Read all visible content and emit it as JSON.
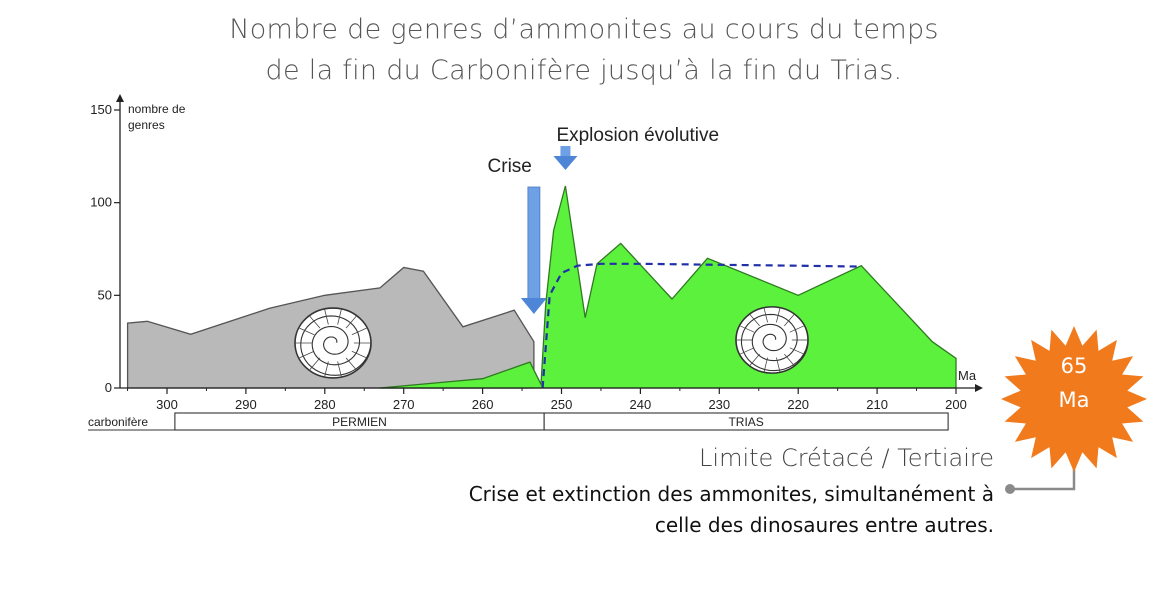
{
  "header": {
    "title_line1": "Nombre de genres d’ammonites au cours du temps",
    "title_line2": "de la fin du Carbonifère jusqu’à la fin du Trias."
  },
  "chart_data": {
    "type": "area",
    "ylabel_line1": "nombre de",
    "ylabel_line2": "genres",
    "xlabel": "Ma",
    "ylim": [
      0,
      150
    ],
    "yticks": [
      0,
      50,
      100,
      150
    ],
    "xlim": [
      306,
      200
    ],
    "xticks": [
      300,
      290,
      280,
      270,
      260,
      250,
      240,
      230,
      220,
      210,
      200
    ],
    "series": [
      {
        "color": "#b9b9b9",
        "points": [
          [
            305,
            0
          ],
          [
            305,
            35
          ],
          [
            302.5,
            36
          ],
          [
            297,
            29
          ],
          [
            287,
            43
          ],
          [
            280,
            50
          ],
          [
            273,
            54
          ],
          [
            270,
            65
          ],
          [
            267.5,
            63
          ],
          [
            262.5,
            33
          ],
          [
            256,
            42
          ],
          [
            253.5,
            25
          ],
          [
            253.5,
            0
          ]
        ]
      },
      {
        "color": "#5cf13d",
        "points": [
          [
            273,
            0
          ],
          [
            260,
            5
          ],
          [
            254,
            14
          ],
          [
            252.6,
            2
          ],
          [
            252,
            45
          ],
          [
            251,
            85
          ],
          [
            249.5,
            109
          ],
          [
            247,
            38
          ],
          [
            245.5,
            67
          ],
          [
            242.5,
            78
          ],
          [
            236,
            48
          ],
          [
            231.5,
            70
          ],
          [
            220,
            50
          ],
          [
            212,
            66
          ],
          [
            203,
            25
          ],
          [
            200,
            16
          ],
          [
            200,
            0
          ]
        ]
      },
      {
        "color": "#2230a8",
        "style": "dashed",
        "points": [
          [
            252.4,
            0
          ],
          [
            251.5,
            50
          ],
          [
            250,
            62
          ],
          [
            248,
            66
          ],
          [
            245,
            67
          ],
          [
            240,
            67
          ],
          [
            230,
            66.5
          ],
          [
            220,
            66
          ],
          [
            212,
            65.5
          ]
        ]
      }
    ],
    "periods": [
      {
        "label": "carbonifère",
        "start": 306,
        "end": 299
      },
      {
        "label": "PERMIEN",
        "start": 299,
        "end": 252.2
      },
      {
        "label": "TRIAS",
        "start": 252.2,
        "end": 201
      }
    ],
    "annotations": [
      {
        "label": "Crise",
        "x": 253.5
      },
      {
        "label": "Explosion évolutive",
        "x": 249.5
      }
    ]
  },
  "note": {
    "badge_line1": "65",
    "badge_line2": "Ma",
    "title": "Limite Crétacé / Tertiaire",
    "line1": "Crise et extinction des ammonites, simultanément à",
    "line2": "celle des dinosaures entre autres."
  },
  "colors": {
    "badge": "#f07a1c",
    "connector": "#8a8a8a",
    "arrow": "#5b8fd8"
  }
}
